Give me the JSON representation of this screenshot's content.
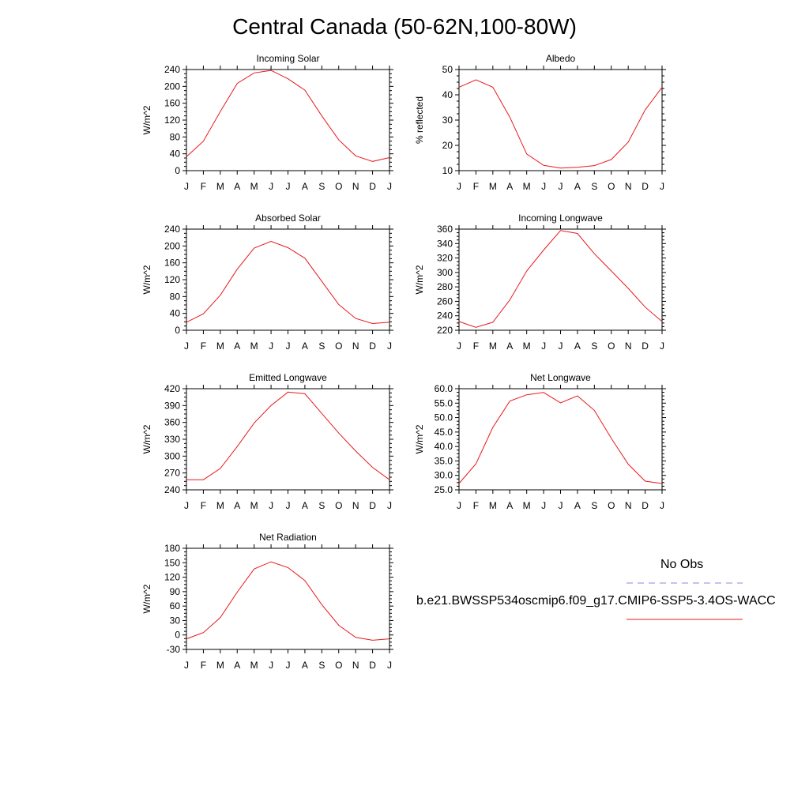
{
  "title": "Central Canada (50-62N,100-80W)",
  "colors": {
    "model_line": "#e8191c",
    "obs_line": "#8a8ae0",
    "axis": "#000000"
  },
  "legend": {
    "obs_label": "No Obs",
    "case_label": "b.e21.BWSSP534oscmip6.f09_g17.CMIP6-SSP5-3.4OS-WACC"
  },
  "chart_data": [
    {
      "type": "line",
      "title": "Incoming Solar",
      "ylabel": "W/m^2",
      "categories": [
        "J",
        "F",
        "M",
        "A",
        "M",
        "J",
        "J",
        "A",
        "S",
        "O",
        "N",
        "D",
        "J"
      ],
      "ylim": [
        0,
        240
      ],
      "yticks": [
        "0",
        "40",
        "80",
        "120",
        "160",
        "200",
        "240"
      ],
      "series": [
        {
          "values": [
            33,
            70,
            140,
            207,
            232,
            238,
            218,
            191,
            130,
            73,
            35,
            22,
            31
          ]
        }
      ]
    },
    {
      "type": "line",
      "title": "Albedo",
      "ylabel": "% reflected",
      "categories": [
        "J",
        "F",
        "M",
        "A",
        "M",
        "J",
        "J",
        "A",
        "S",
        "O",
        "N",
        "D",
        "J"
      ],
      "ylim": [
        10,
        50
      ],
      "yticks": [
        "10",
        "20",
        "30",
        "40",
        "50"
      ],
      "series": [
        {
          "values": [
            43.0,
            45.9,
            43.0,
            31.2,
            16.6,
            12.1,
            11.0,
            11.3,
            12.0,
            14.4,
            21.3,
            34.0,
            43.0
          ]
        }
      ]
    },
    {
      "type": "line",
      "title": "Absorbed Solar",
      "ylabel": "W/m^2",
      "categories": [
        "J",
        "F",
        "M",
        "A",
        "M",
        "J",
        "J",
        "A",
        "S",
        "O",
        "N",
        "D",
        "J"
      ],
      "ylim": [
        0,
        240
      ],
      "yticks": [
        "0",
        "40",
        "80",
        "120",
        "160",
        "200",
        "240"
      ],
      "series": [
        {
          "values": [
            19,
            39,
            83,
            145,
            195,
            211,
            196,
            171,
            116,
            61,
            28,
            16,
            19
          ]
        }
      ]
    },
    {
      "type": "line",
      "title": "Incoming Longwave",
      "ylabel": "W/m^2",
      "categories": [
        "J",
        "F",
        "M",
        "A",
        "M",
        "J",
        "J",
        "A",
        "S",
        "O",
        "N",
        "D",
        "J"
      ],
      "ylim": [
        220,
        360
      ],
      "yticks": [
        "220",
        "240",
        "260",
        "280",
        "300",
        "320",
        "340",
        "360"
      ],
      "series": [
        {
          "values": [
            232,
            224,
            231,
            262,
            302,
            331,
            358,
            354,
            326,
            302,
            278,
            252,
            232
          ]
        }
      ]
    },
    {
      "type": "line",
      "title": "Emitted Longwave",
      "ylabel": "W/m^2",
      "categories": [
        "J",
        "F",
        "M",
        "A",
        "M",
        "J",
        "J",
        "A",
        "S",
        "O",
        "N",
        "D",
        "J"
      ],
      "ylim": [
        240,
        420
      ],
      "yticks": [
        "240",
        "270",
        "300",
        "330",
        "360",
        "390",
        "420"
      ],
      "series": [
        {
          "values": [
            258,
            258,
            278,
            317,
            359,
            390,
            414,
            411,
            376,
            341,
            309,
            280,
            258
          ]
        }
      ]
    },
    {
      "type": "line",
      "title": "Net Longwave",
      "ylabel": "W/m^2",
      "categories": [
        "J",
        "F",
        "M",
        "A",
        "M",
        "J",
        "J",
        "A",
        "S",
        "O",
        "N",
        "D",
        "J"
      ],
      "ylim": [
        25,
        60
      ],
      "yticks": [
        "25.0",
        "30.0",
        "35.0",
        "40.0",
        "45.0",
        "50.0",
        "55.0",
        "60.0"
      ],
      "series": [
        {
          "values": [
            27.2,
            34.0,
            46.6,
            55.7,
            57.9,
            58.7,
            55.1,
            57.5,
            52.5,
            42.8,
            33.9,
            28.0,
            27.2
          ]
        }
      ]
    },
    {
      "type": "line",
      "title": "Net Radiation",
      "ylabel": "W/m^2",
      "categories": [
        "J",
        "F",
        "M",
        "A",
        "M",
        "J",
        "J",
        "A",
        "S",
        "O",
        "N",
        "D",
        "J"
      ],
      "ylim": [
        -30,
        180
      ],
      "yticks": [
        "-30",
        "0",
        "30",
        "60",
        "90",
        "120",
        "150",
        "180"
      ],
      "series": [
        {
          "values": [
            -8,
            5,
            36,
            89,
            137,
            152,
            140,
            113,
            63,
            20,
            -5,
            -11,
            -8
          ]
        }
      ]
    }
  ]
}
